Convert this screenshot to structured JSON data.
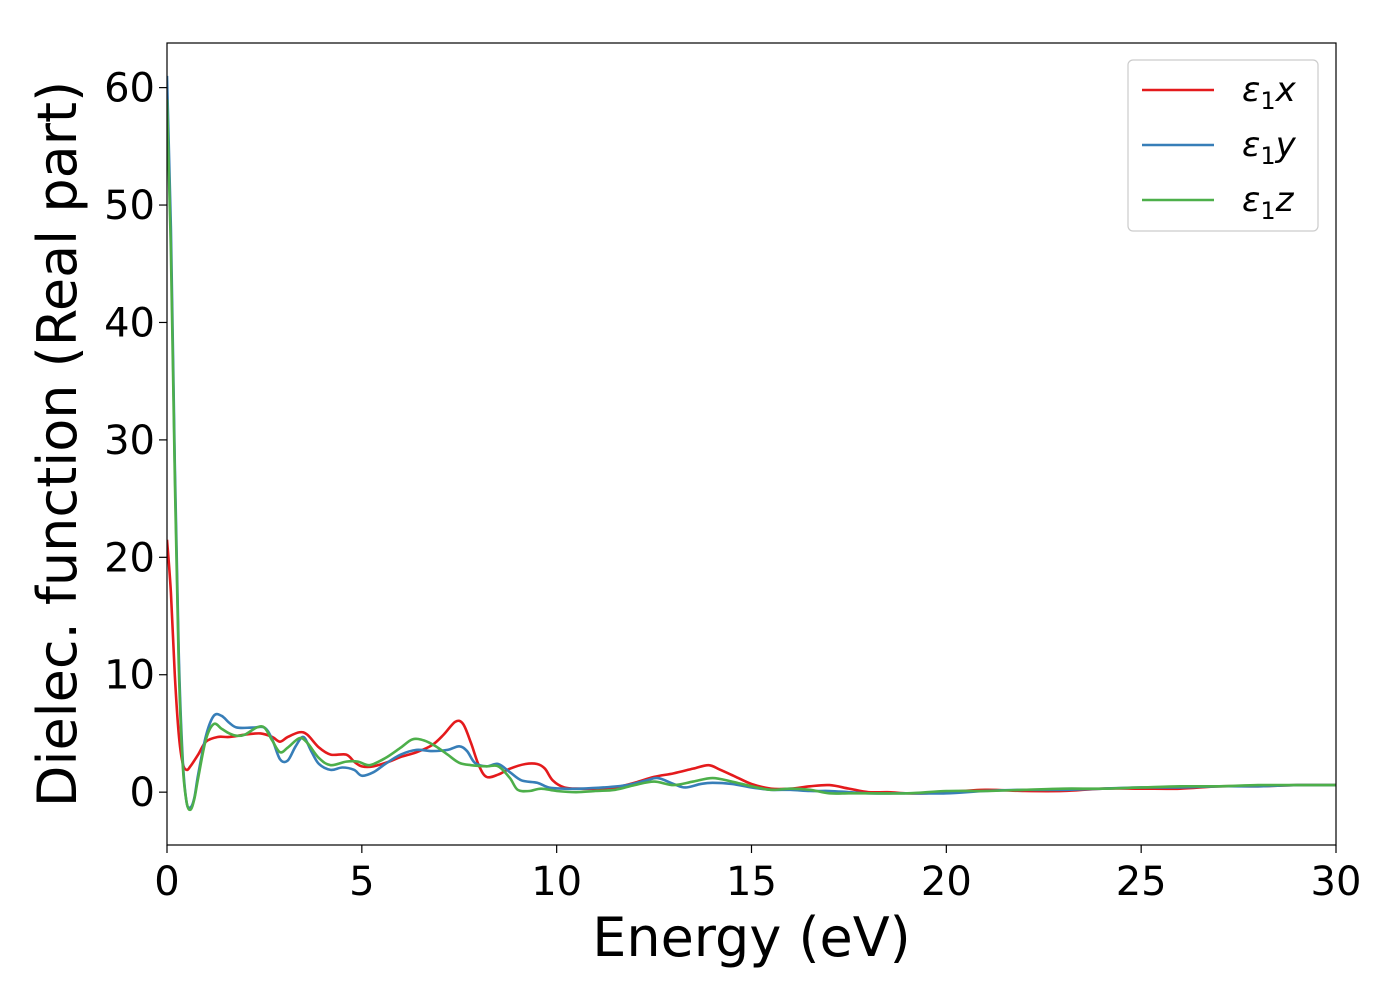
{
  "chart_data": {
    "type": "line",
    "xlabel": "Energy (eV)",
    "ylabel": "Dielec. function (Real part)",
    "xlim": [
      0,
      30
    ],
    "ylim": [
      -4.5,
      63.8
    ],
    "xticks": [
      0,
      5,
      10,
      15,
      20,
      25,
      30
    ],
    "yticks": [
      0,
      10,
      20,
      30,
      40,
      50,
      60
    ],
    "grid": false,
    "legend_position": "top-right",
    "series": [
      {
        "name": "ε₁x",
        "legend_base": "ε",
        "legend_sub": "1",
        "legend_suffix": "x",
        "color": "#e41a1c",
        "points": [
          [
            0,
            21.5
          ],
          [
            0.1,
            17
          ],
          [
            0.2,
            10
          ],
          [
            0.3,
            5
          ],
          [
            0.4,
            2.5
          ],
          [
            0.5,
            1.9
          ],
          [
            0.6,
            2.2
          ],
          [
            0.8,
            3.2
          ],
          [
            1.0,
            4.3
          ],
          [
            1.3,
            4.7
          ],
          [
            1.6,
            4.7
          ],
          [
            2.0,
            4.9
          ],
          [
            2.4,
            5.0
          ],
          [
            2.7,
            4.7
          ],
          [
            2.9,
            4.3
          ],
          [
            3.1,
            4.7
          ],
          [
            3.4,
            5.1
          ],
          [
            3.6,
            4.9
          ],
          [
            3.9,
            3.8
          ],
          [
            4.2,
            3.2
          ],
          [
            4.6,
            3.2
          ],
          [
            4.8,
            2.6
          ],
          [
            5.0,
            2.2
          ],
          [
            5.3,
            2.2
          ],
          [
            5.7,
            2.6
          ],
          [
            6.0,
            3.0
          ],
          [
            6.4,
            3.4
          ],
          [
            6.8,
            4.0
          ],
          [
            7.1,
            4.9
          ],
          [
            7.4,
            6.0
          ],
          [
            7.6,
            5.8
          ],
          [
            7.8,
            4.2
          ],
          [
            8.0,
            2.3
          ],
          [
            8.2,
            1.3
          ],
          [
            8.5,
            1.5
          ],
          [
            8.8,
            2.0
          ],
          [
            9.2,
            2.4
          ],
          [
            9.5,
            2.4
          ],
          [
            9.7,
            2.0
          ],
          [
            9.9,
            1.0
          ],
          [
            10.2,
            0.4
          ],
          [
            10.6,
            0.3
          ],
          [
            11.0,
            0.3
          ],
          [
            11.5,
            0.4
          ],
          [
            12.0,
            0.8
          ],
          [
            12.5,
            1.3
          ],
          [
            13.0,
            1.6
          ],
          [
            13.5,
            2.0
          ],
          [
            13.9,
            2.3
          ],
          [
            14.2,
            1.9
          ],
          [
            14.6,
            1.3
          ],
          [
            15.0,
            0.7
          ],
          [
            15.5,
            0.3
          ],
          [
            16.0,
            0.3
          ],
          [
            16.5,
            0.5
          ],
          [
            17.0,
            0.6
          ],
          [
            17.5,
            0.3
          ],
          [
            18.0,
            0.0
          ],
          [
            18.5,
            0.0
          ],
          [
            19.0,
            -0.1
          ],
          [
            19.5,
            -0.1
          ],
          [
            20.0,
            0.0
          ],
          [
            21.0,
            0.2
          ],
          [
            22.0,
            0.1
          ],
          [
            23.0,
            0.1
          ],
          [
            24.0,
            0.3
          ],
          [
            25.0,
            0.3
          ],
          [
            26.0,
            0.3
          ],
          [
            27.0,
            0.5
          ],
          [
            28.0,
            0.5
          ],
          [
            29.0,
            0.6
          ],
          [
            30.0,
            0.6
          ]
        ]
      },
      {
        "name": "ε₁y",
        "legend_base": "ε",
        "legend_sub": "1",
        "legend_suffix": "y",
        "color": "#377eb8",
        "points": [
          [
            0,
            61
          ],
          [
            0.1,
            48
          ],
          [
            0.2,
            28
          ],
          [
            0.3,
            12
          ],
          [
            0.4,
            3
          ],
          [
            0.5,
            -0.8
          ],
          [
            0.6,
            -1.3
          ],
          [
            0.7,
            -0.5
          ],
          [
            0.8,
            1.5
          ],
          [
            1.0,
            4.8
          ],
          [
            1.2,
            6.5
          ],
          [
            1.4,
            6.5
          ],
          [
            1.6,
            5.9
          ],
          [
            1.8,
            5.5
          ],
          [
            2.2,
            5.5
          ],
          [
            2.5,
            5.5
          ],
          [
            2.7,
            4.5
          ],
          [
            2.9,
            2.8
          ],
          [
            3.1,
            2.7
          ],
          [
            3.3,
            3.9
          ],
          [
            3.5,
            4.7
          ],
          [
            3.7,
            3.5
          ],
          [
            3.9,
            2.4
          ],
          [
            4.2,
            1.9
          ],
          [
            4.5,
            2.1
          ],
          [
            4.8,
            1.9
          ],
          [
            5.0,
            1.4
          ],
          [
            5.3,
            1.7
          ],
          [
            5.6,
            2.4
          ],
          [
            6.0,
            3.2
          ],
          [
            6.4,
            3.6
          ],
          [
            6.8,
            3.5
          ],
          [
            7.2,
            3.6
          ],
          [
            7.5,
            3.9
          ],
          [
            7.7,
            3.5
          ],
          [
            7.9,
            2.5
          ],
          [
            8.2,
            2.2
          ],
          [
            8.5,
            2.4
          ],
          [
            8.8,
            1.7
          ],
          [
            9.1,
            1.0
          ],
          [
            9.5,
            0.8
          ],
          [
            9.8,
            0.4
          ],
          [
            10.2,
            0.3
          ],
          [
            10.6,
            0.3
          ],
          [
            11.2,
            0.4
          ],
          [
            11.8,
            0.6
          ],
          [
            12.3,
            1.0
          ],
          [
            12.6,
            1.2
          ],
          [
            13.0,
            0.7
          ],
          [
            13.3,
            0.4
          ],
          [
            13.7,
            0.7
          ],
          [
            14.0,
            0.8
          ],
          [
            14.5,
            0.7
          ],
          [
            15.0,
            0.4
          ],
          [
            15.5,
            0.2
          ],
          [
            16.0,
            0.2
          ],
          [
            16.5,
            0.1
          ],
          [
            17.0,
            0.1
          ],
          [
            17.5,
            0.0
          ],
          [
            18.0,
            -0.1
          ],
          [
            19.0,
            -0.1
          ],
          [
            20.0,
            -0.1
          ],
          [
            21.0,
            0.1
          ],
          [
            22.0,
            0.2
          ],
          [
            23.0,
            0.2
          ],
          [
            24.0,
            0.3
          ],
          [
            25.0,
            0.4
          ],
          [
            26.0,
            0.4
          ],
          [
            27.0,
            0.5
          ],
          [
            28.0,
            0.5
          ],
          [
            29.0,
            0.6
          ],
          [
            30.0,
            0.6
          ]
        ]
      },
      {
        "name": "ε₁z",
        "legend_base": "ε",
        "legend_sub": "1",
        "legend_suffix": "z",
        "color": "#4daf4a",
        "points": [
          [
            0,
            59
          ],
          [
            0.1,
            46
          ],
          [
            0.2,
            27
          ],
          [
            0.3,
            11
          ],
          [
            0.4,
            2.5
          ],
          [
            0.5,
            -0.8
          ],
          [
            0.6,
            -1.5
          ],
          [
            0.7,
            -0.6
          ],
          [
            0.8,
            1.2
          ],
          [
            1.0,
            4.5
          ],
          [
            1.2,
            5.8
          ],
          [
            1.4,
            5.4
          ],
          [
            1.6,
            5.0
          ],
          [
            1.8,
            4.8
          ],
          [
            2.0,
            4.9
          ],
          [
            2.3,
            5.5
          ],
          [
            2.5,
            5.5
          ],
          [
            2.7,
            4.4
          ],
          [
            2.9,
            3.4
          ],
          [
            3.1,
            3.8
          ],
          [
            3.4,
            4.6
          ],
          [
            3.6,
            4.2
          ],
          [
            3.9,
            2.9
          ],
          [
            4.2,
            2.3
          ],
          [
            4.6,
            2.6
          ],
          [
            4.9,
            2.6
          ],
          [
            5.2,
            2.3
          ],
          [
            5.6,
            2.9
          ],
          [
            6.0,
            3.8
          ],
          [
            6.3,
            4.5
          ],
          [
            6.6,
            4.4
          ],
          [
            6.9,
            3.9
          ],
          [
            7.2,
            3.2
          ],
          [
            7.5,
            2.5
          ],
          [
            7.8,
            2.3
          ],
          [
            8.2,
            2.2
          ],
          [
            8.5,
            2.2
          ],
          [
            8.8,
            1.2
          ],
          [
            9.0,
            0.2
          ],
          [
            9.3,
            0.1
          ],
          [
            9.6,
            0.3
          ],
          [
            10.0,
            0.1
          ],
          [
            10.5,
            0.0
          ],
          [
            11.0,
            0.1
          ],
          [
            11.5,
            0.2
          ],
          [
            12.0,
            0.6
          ],
          [
            12.5,
            0.9
          ],
          [
            13.0,
            0.6
          ],
          [
            13.5,
            0.9
          ],
          [
            14.0,
            1.2
          ],
          [
            14.5,
            0.9
          ],
          [
            15.0,
            0.5
          ],
          [
            15.5,
            0.2
          ],
          [
            16.0,
            0.3
          ],
          [
            16.5,
            0.2
          ],
          [
            17.0,
            -0.1
          ],
          [
            17.5,
            -0.1
          ],
          [
            18.0,
            -0.1
          ],
          [
            19.0,
            -0.1
          ],
          [
            20.0,
            0.1
          ],
          [
            21.0,
            0.1
          ],
          [
            22.0,
            0.2
          ],
          [
            23.0,
            0.3
          ],
          [
            24.0,
            0.3
          ],
          [
            25.0,
            0.4
          ],
          [
            26.0,
            0.5
          ],
          [
            27.0,
            0.5
          ],
          [
            28.0,
            0.6
          ],
          [
            29.0,
            0.6
          ],
          [
            30.0,
            0.6
          ]
        ]
      }
    ]
  }
}
